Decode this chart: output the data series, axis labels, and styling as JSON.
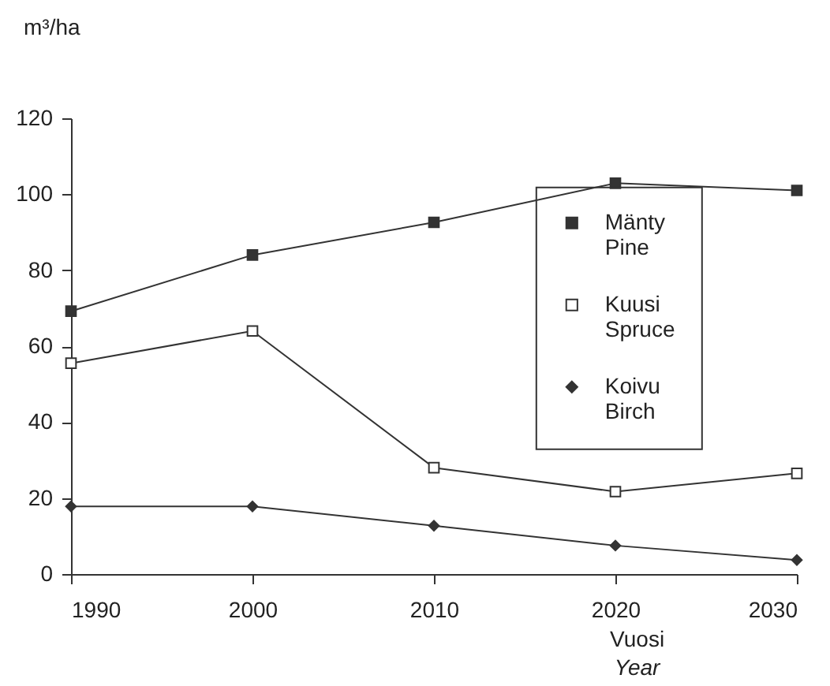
{
  "chart_data": {
    "type": "line",
    "ylabel": "m³/ha",
    "xlabel": "Vuosi\nYear",
    "x": [
      1990,
      2000,
      2010,
      2020,
      2030
    ],
    "xlim": [
      1990,
      2030
    ],
    "xticks": [
      1990,
      2000,
      2010,
      2020,
      2030
    ],
    "ylim": [
      0,
      120
    ],
    "yticks": [
      0,
      20,
      40,
      60,
      80,
      100,
      120
    ],
    "grid": false,
    "legend": "right",
    "line_style": "solid",
    "series": [
      {
        "name": "Mänty\nPine",
        "color": "#333333",
        "marker": "square",
        "values": [
          69.2,
          84,
          92.6,
          102.9,
          101
        ]
      },
      {
        "name": "Kuusi\nSpruce",
        "color": "#333333",
        "marker": "square",
        "values": [
          55.5,
          64,
          28,
          21.7,
          26.5
        ]
      },
      {
        "name": "Koivu\nBirch",
        "color": "#333333",
        "marker": "diamond",
        "values": [
          17.8,
          17.8,
          12.7,
          7.5,
          3.7
        ]
      }
    ]
  }
}
